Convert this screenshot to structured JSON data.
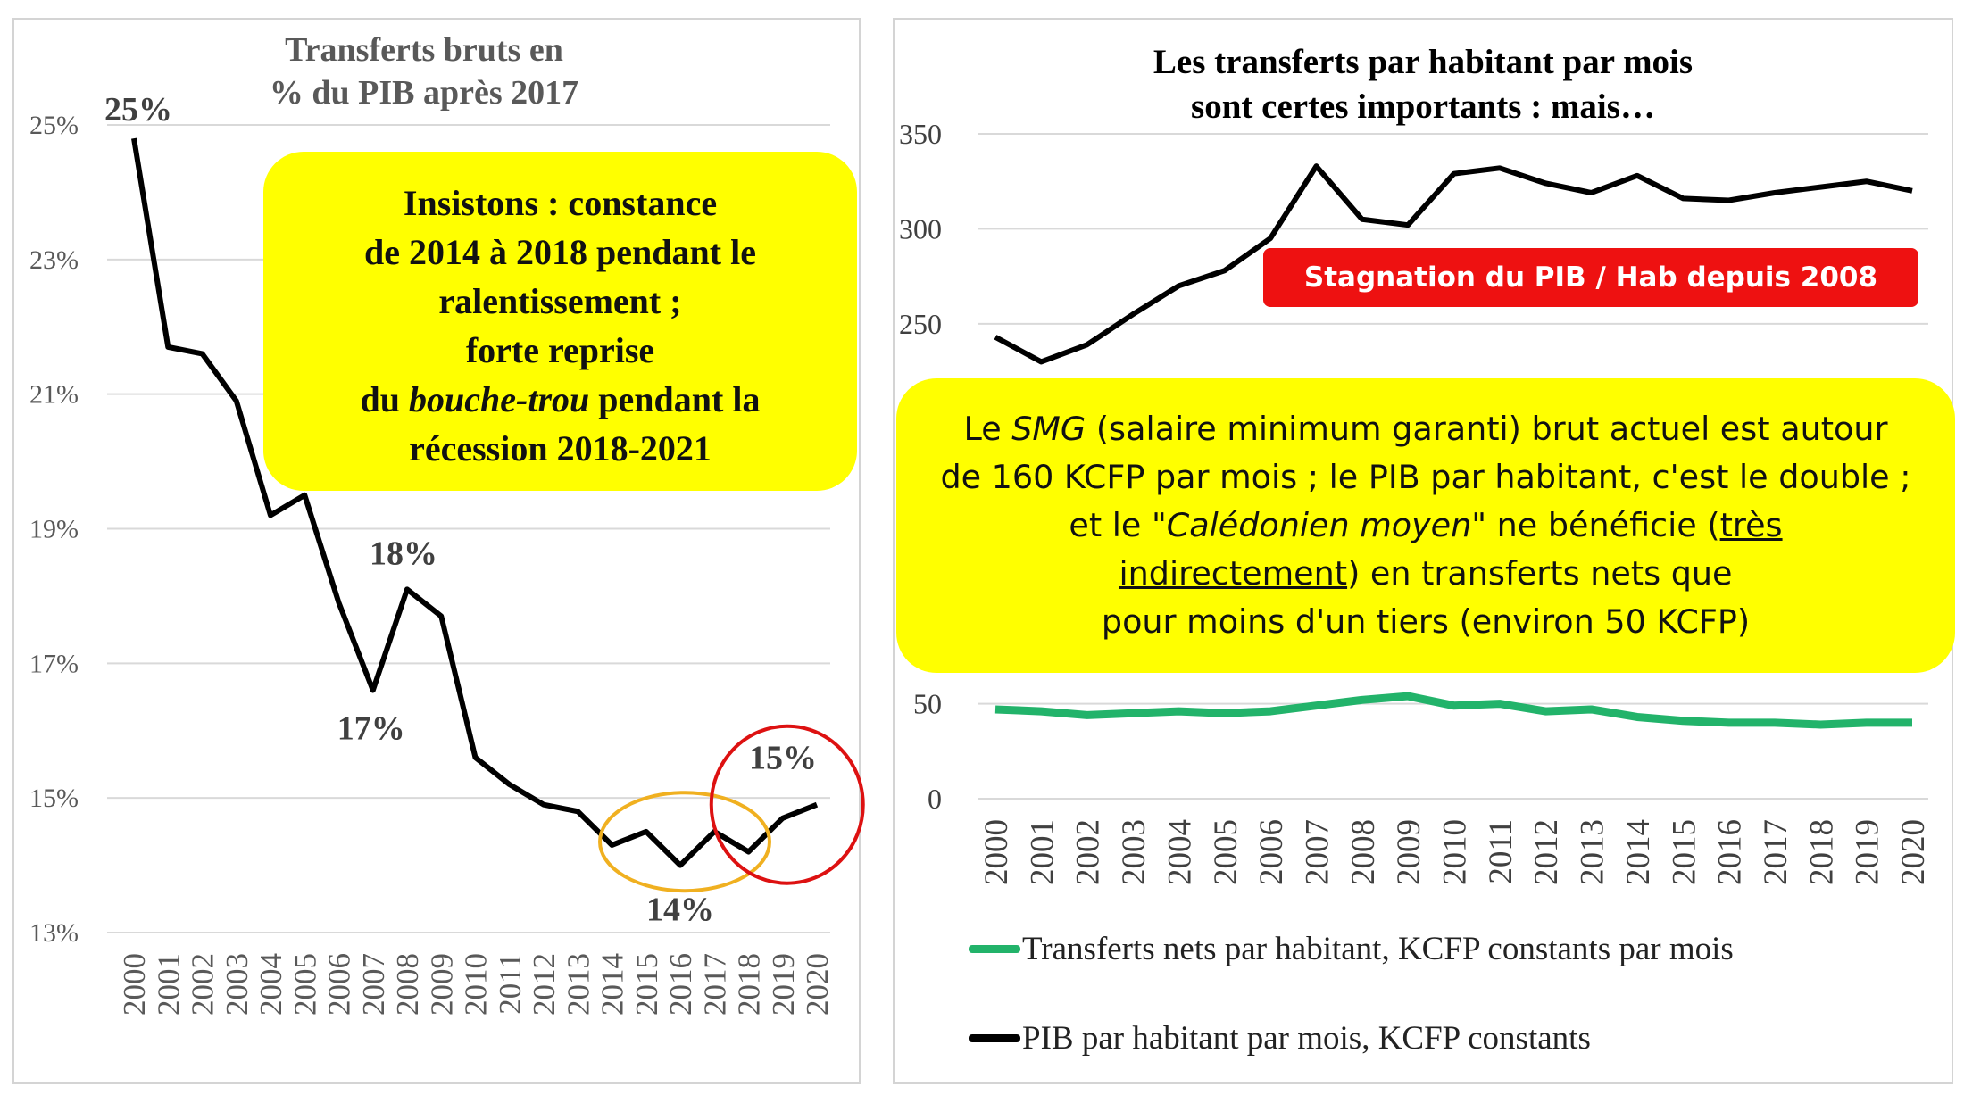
{
  "chart_data": [
    {
      "type": "line",
      "title": "Transferts bruts en\n% du PIB après 2017",
      "categories": [
        "2000",
        "2001",
        "2002",
        "2003",
        "2004",
        "2005",
        "2006",
        "2007",
        "2008",
        "2009",
        "2010",
        "2011",
        "2012",
        "2013",
        "2014",
        "2015",
        "2016",
        "2017",
        "2018",
        "2019",
        "2020"
      ],
      "series": [
        {
          "values": [
            24.8,
            21.7,
            21.6,
            20.9,
            19.2,
            19.5,
            17.9,
            16.6,
            18.1,
            17.7,
            15.6,
            15.2,
            14.9,
            14.8,
            14.3,
            14.5,
            14.0,
            14.5,
            14.2,
            14.7,
            14.9
          ]
        }
      ],
      "yticks": [
        "13%",
        "15%",
        "17%",
        "19%",
        "21%",
        "23%",
        "25%"
      ],
      "ylim": [
        13,
        25
      ],
      "data_labels": [
        {
          "index": 0,
          "text": "25%"
        },
        {
          "index": 7,
          "text": "17%"
        },
        {
          "index": 8,
          "text": "18%"
        },
        {
          "index": 16,
          "text": "14%"
        },
        {
          "index": 20,
          "text": "15%"
        }
      ],
      "annotation": {
        "line1": "Insistons : constance",
        "line2": "de 2014 à 2018 pendant le",
        "line3": "ralentissement ;",
        "line4": "forte reprise",
        "line5a": "du ",
        "line5b": "bouche-trou",
        "line5c": " pendant la",
        "line6": "récession 2018-2021"
      },
      "highlight_colors": {
        "orange": "#f0b020",
        "red": "#dd1111"
      },
      "grid": true,
      "line_color": "#000000"
    },
    {
      "type": "line",
      "title": "Les transferts par habitant par mois\nsont certes importants : mais…",
      "categories": [
        "2000",
        "2001",
        "2002",
        "2003",
        "2004",
        "2005",
        "2006",
        "2007",
        "2008",
        "2009",
        "2010",
        "2011",
        "2012",
        "2013",
        "2014",
        "2015",
        "2016",
        "2017",
        "2018",
        "2019",
        "2020"
      ],
      "series": [
        {
          "name": "Transferts nets par habitant, KCFP constants par mois",
          "color": "#22b36a",
          "values": [
            47,
            46,
            44,
            45,
            46,
            45,
            46,
            49,
            52,
            54,
            49,
            50,
            46,
            47,
            43,
            41,
            40,
            40,
            39,
            40,
            40
          ]
        },
        {
          "name": "PIB par habitant par mois, KCFP constants",
          "color": "#000000",
          "values": [
            243,
            230,
            239,
            255,
            270,
            278,
            295,
            333,
            305,
            302,
            329,
            332,
            324,
            319,
            328,
            316,
            315,
            319,
            322,
            325,
            320
          ]
        }
      ],
      "yticks": [
        "0",
        "50",
        "250",
        "300",
        "350"
      ],
      "ylim": [
        0,
        350
      ],
      "banner": "Stagnation du PIB /  Hab depuis 2008",
      "note": {
        "p1a": "Le ",
        "p1b": "SMG",
        "p1c": " (salaire minimum garanti) brut actuel est autour",
        "p2": "de 160 KCFP par mois ; le PIB par habitant, c'est le double ;",
        "p3a": "et le ",
        "p3b": "\"Calédonien moyen\"",
        "p3c": " ne bénéficie (",
        "p3d": "très",
        "p4a": "indirectement",
        "p4b": ") en transferts nets que",
        "p5": "pour moins d'un tiers (environ 50 KCFP)"
      },
      "grid": true
    }
  ]
}
